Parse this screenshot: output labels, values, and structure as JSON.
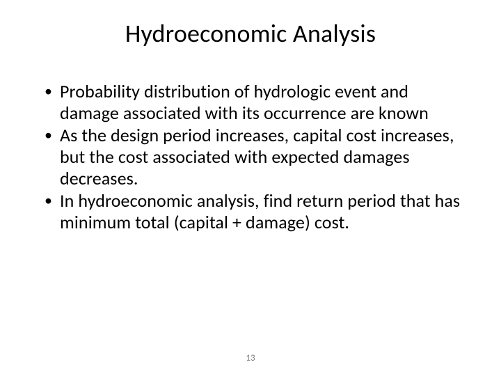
{
  "slide": {
    "title": "Hydroeconomic Analysis",
    "bullets": [
      "Probability distribution of hydrologic event and damage associated with its occurrence are known",
      "As the design period increases, capital cost increases, but the cost associated with expected damages decreases.",
      "In hydroeconomic analysis, find return period that has minimum total (capital + damage) cost."
    ],
    "page_number": "13"
  },
  "style": {
    "background_color": "#ffffff",
    "text_color": "#000000",
    "page_number_color": "#7f7f7f",
    "title_fontsize": 36,
    "body_fontsize": 26,
    "page_number_fontsize": 13,
    "font_family": "Calibri"
  }
}
